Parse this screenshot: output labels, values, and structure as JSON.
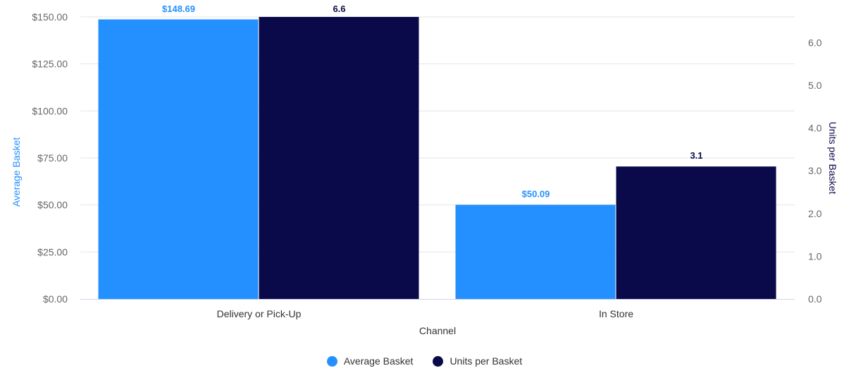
{
  "chart_data": {
    "type": "bar",
    "xlabel": "Channel",
    "categories": [
      "Delivery or Pick-Up",
      "In Store"
    ],
    "series": [
      {
        "name": "Average Basket",
        "axis": "left",
        "color": "#2490ff",
        "values": [
          148.69,
          50.09
        ],
        "labels": [
          "$148.69",
          "$50.09"
        ]
      },
      {
        "name": "Units per Basket",
        "axis": "right",
        "color": "#0a0a4a",
        "values": [
          6.6,
          3.1
        ],
        "labels": [
          "6.6",
          "3.1"
        ]
      }
    ],
    "y_left": {
      "label": "Average Basket",
      "ylim": [
        0,
        150
      ],
      "ticks": [
        0,
        25,
        50,
        75,
        100,
        125,
        150
      ],
      "tick_labels": [
        "$0.00",
        "$25.00",
        "$50.00",
        "$75.00",
        "$100.00",
        "$125.00",
        "$150.00"
      ]
    },
    "y_right": {
      "label": "Units per Basket",
      "ylim": [
        0,
        6.6
      ],
      "ticks": [
        0,
        1,
        2,
        3,
        4,
        5,
        6
      ],
      "tick_labels": [
        "0.0",
        "1.0",
        "2.0",
        "3.0",
        "4.0",
        "5.0",
        "6.0"
      ]
    },
    "grid": true,
    "legend": "bottom-center"
  }
}
